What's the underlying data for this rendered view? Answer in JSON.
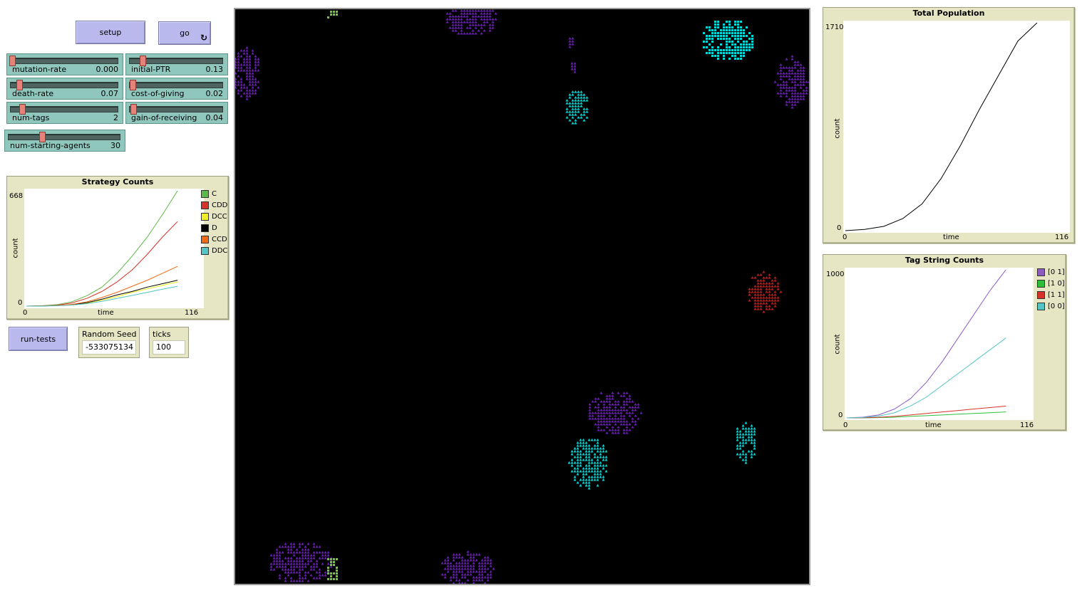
{
  "buttons": {
    "setup": "setup",
    "go": "go",
    "run_tests": "run-tests",
    "forever_icon": "↻"
  },
  "sliders": [
    {
      "id": "mutation-rate",
      "label": "mutation-rate",
      "value": "0.000",
      "fraction": 0.0
    },
    {
      "id": "initial-ptr",
      "label": "initial-PTR",
      "value": "0.13",
      "fraction": 0.13
    },
    {
      "id": "death-rate",
      "label": "death-rate",
      "value": "0.07",
      "fraction": 0.07
    },
    {
      "id": "cost-of-giving",
      "label": "cost-of-giving",
      "value": "0.02",
      "fraction": 0.02
    },
    {
      "id": "num-tags",
      "label": "num-tags",
      "value": "2",
      "fraction": 0.1
    },
    {
      "id": "gain-of-receiving",
      "label": "gain-of-receiving",
      "value": "0.04",
      "fraction": 0.04
    },
    {
      "id": "num-starting-agents",
      "label": "num-starting-agents",
      "value": "30",
      "fraction": 0.3
    }
  ],
  "monitors": {
    "random_seed": {
      "label": "Random Seed",
      "value": "-533075134"
    },
    "ticks": {
      "label": "ticks",
      "value": "100"
    }
  },
  "plots": {
    "strategy": {
      "title": "Strategy Counts",
      "xlabel": "time",
      "ylabel": "count",
      "xmin": "0",
      "xmax": "116",
      "ymin": "0",
      "ymax": "668",
      "legend": [
        {
          "name": "C",
          "color": "#5cb847"
        },
        {
          "name": "CDD",
          "color": "#d73229"
        },
        {
          "name": "DCC",
          "color": "#eeee22"
        },
        {
          "name": "D",
          "color": "#000000"
        },
        {
          "name": "CCD",
          "color": "#f16a15"
        },
        {
          "name": "DDC",
          "color": "#54c4c4"
        }
      ]
    },
    "total": {
      "title": "Total Population",
      "xlabel": "time",
      "ylabel": "count",
      "xmin": "0",
      "xmax": "116",
      "ymin": "0",
      "ymax": "1710"
    },
    "tags": {
      "title": "Tag String Counts",
      "xlabel": "time",
      "ylabel": "count",
      "xmin": "0",
      "xmax": "116",
      "ymin": "0",
      "ymax": "1000",
      "legend": [
        {
          "name": "[0 1]",
          "color": "#8c5cc0"
        },
        {
          "name": "[1 0]",
          "color": "#2cc03a"
        },
        {
          "name": "[1 1]",
          "color": "#d73229"
        },
        {
          "name": "[0 0]",
          "color": "#54c4c4"
        }
      ]
    }
  },
  "chart_data": [
    {
      "type": "line",
      "title": "Strategy Counts",
      "xlabel": "time",
      "ylabel": "count",
      "xlim": [
        0,
        116
      ],
      "ylim": [
        0,
        668
      ],
      "x": [
        0,
        10,
        20,
        30,
        40,
        50,
        60,
        70,
        80,
        90,
        100
      ],
      "series": [
        {
          "name": "C",
          "values": [
            0,
            2,
            8,
            25,
            60,
            110,
            190,
            290,
            400,
            530,
            668
          ]
        },
        {
          "name": "CDD",
          "values": [
            0,
            1,
            5,
            18,
            45,
            85,
            140,
            210,
            300,
            400,
            490
          ]
        },
        {
          "name": "DCC",
          "values": [
            0,
            1,
            3,
            8,
            18,
            35,
            55,
            80,
            100,
            120,
            140
          ]
        },
        {
          "name": "D",
          "values": [
            0,
            1,
            3,
            8,
            20,
            40,
            65,
            85,
            110,
            130,
            150
          ]
        },
        {
          "name": "CCD",
          "values": [
            0,
            1,
            3,
            10,
            25,
            50,
            80,
            115,
            150,
            190,
            230
          ]
        },
        {
          "name": "DDC",
          "values": [
            0,
            0,
            2,
            6,
            14,
            28,
            45,
            62,
            80,
            98,
            115
          ]
        }
      ]
    },
    {
      "type": "line",
      "title": "Total Population",
      "xlabel": "time",
      "ylabel": "count",
      "xlim": [
        0,
        116
      ],
      "ylim": [
        0,
        1710
      ],
      "x": [
        0,
        10,
        20,
        30,
        40,
        50,
        60,
        70,
        80,
        90,
        100
      ],
      "series": [
        {
          "values": [
            0,
            10,
            35,
            100,
            220,
            430,
            700,
            1000,
            1280,
            1560,
            1710
          ]
        }
      ]
    },
    {
      "type": "line",
      "title": "Tag String Counts",
      "xlabel": "time",
      "ylabel": "count",
      "xlim": [
        0,
        116
      ],
      "ylim": [
        0,
        1000
      ],
      "x": [
        0,
        10,
        20,
        30,
        40,
        50,
        60,
        70,
        80,
        90,
        100
      ],
      "series": [
        {
          "name": "[0 1]",
          "values": [
            0,
            5,
            20,
            60,
            130,
            240,
            380,
            540,
            700,
            860,
            1000
          ]
        },
        {
          "name": "[1 0]",
          "values": [
            0,
            0,
            2,
            5,
            10,
            15,
            20,
            25,
            30,
            35,
            40
          ]
        },
        {
          "name": "[1 1]",
          "values": [
            0,
            1,
            4,
            10,
            20,
            30,
            40,
            50,
            60,
            70,
            80
          ]
        },
        {
          "name": "[0 0]",
          "values": [
            0,
            3,
            12,
            35,
            80,
            140,
            220,
            300,
            380,
            460,
            540
          ]
        }
      ]
    }
  ],
  "world": {
    "clusters": [
      {
        "shape": "square",
        "color": "#00d8d8",
        "label": "teal-square-cluster-top-right"
      },
      {
        "shape": "triangle",
        "color": "#6a1fb0",
        "label": "purple-cluster"
      },
      {
        "shape": "triangle",
        "color": "#00d8d8",
        "label": "teal-triangle-cluster"
      },
      {
        "shape": "triangle",
        "color": "#b52020",
        "label": "red-cluster"
      },
      {
        "shape": "square",
        "color": "#6ec83a",
        "label": "green-cluster"
      }
    ]
  }
}
